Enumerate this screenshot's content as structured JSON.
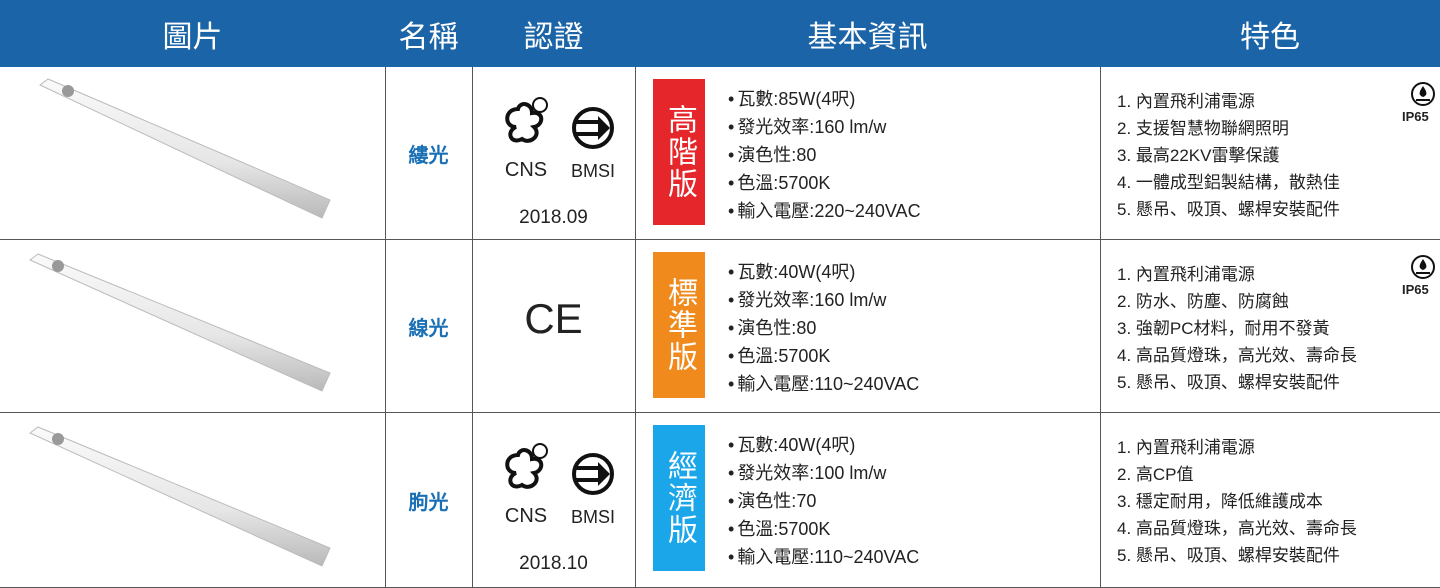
{
  "header": {
    "columns": [
      "圖片",
      "名稱",
      "認證",
      "基本資訊",
      "特色"
    ]
  },
  "rows": [
    {
      "name": "縷光",
      "certifications": {
        "marks": [
          "CNS",
          "BMSI"
        ],
        "date": "2018.09"
      },
      "grade": "高階版",
      "info": [
        "瓦數:85W(4呎)",
        "發光效率:160 lm/w",
        "演色性:80",
        "色溫:5700K",
        "輸入電壓:220~240VAC"
      ],
      "features": [
        "1. 內置飛利浦電源",
        "2. 支援智慧物聯網照明",
        "3. 最高22KV雷擊保護",
        "4. 一體成型鋁製結構，散熱佳",
        "5. 懸吊、吸頂、螺桿安裝配件"
      ],
      "badge": "IP65"
    },
    {
      "name": "線光",
      "certifications": {
        "marks": [
          "CE"
        ]
      },
      "grade": "標準版",
      "info": [
        "瓦數:40W(4呎)",
        "發光效率:160 lm/w",
        "演色性:80",
        "色溫:5700K",
        "輸入電壓:110~240VAC"
      ],
      "features": [
        "1. 內置飛利浦電源",
        "2. 防水、防塵、防腐蝕",
        "3. 強韌PC材料，耐用不發黃",
        "4. 高品質燈珠，高光效、壽命長",
        "5. 懸吊、吸頂、螺桿安裝配件"
      ],
      "badge": "IP65"
    },
    {
      "name": "朐光",
      "certifications": {
        "marks": [
          "CNS",
          "BMSI"
        ],
        "date": "2018.10"
      },
      "grade": "經濟版",
      "info": [
        "瓦數:40W(4呎)",
        "發光效率:100 lm/w",
        "演色性:70",
        "色溫:5700K",
        "輸入電壓:110~240VAC"
      ],
      "features": [
        "1. 內置飛利浦電源",
        "2. 高CP值",
        "3. 穩定耐用，降低維護成本",
        "4. 高品質燈珠，高光效、壽命長",
        "5. 懸吊、吸頂、螺桿安裝配件"
      ]
    }
  ]
}
